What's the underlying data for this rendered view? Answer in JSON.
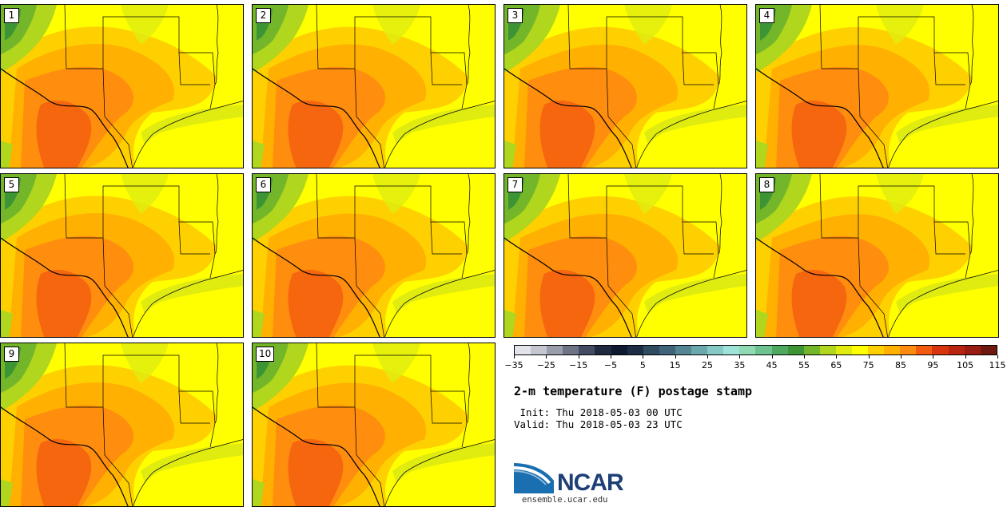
{
  "title": "2-m temperature (F) postage stamp",
  "init_label": " Init:",
  "init_value": "Thu 2018-05-03 00 UTC",
  "valid_label": "Valid:",
  "valid_value": "Thu 2018-05-03 23 UTC",
  "logo_text": "NCAR",
  "logo_url": "ensemble.ucar.edu",
  "panels": [
    "1",
    "2",
    "3",
    "4",
    "5",
    "6",
    "7",
    "8",
    "9",
    "10"
  ],
  "colorbar": {
    "colors": [
      "#e2e4ea",
      "#c4c7d0",
      "#9a9eab",
      "#6e7486",
      "#444c63",
      "#202a3f",
      "#0e1a30",
      "#1d2d45",
      "#304a60",
      "#3f6379",
      "#548593",
      "#6ba8ad",
      "#85c9c4",
      "#9fe3d8",
      "#8fd9b3",
      "#6dc38f",
      "#4fa85f",
      "#3d9434",
      "#74b62a",
      "#b0d61d",
      "#e0ec10",
      "#ffff00",
      "#ffd000",
      "#ffb000",
      "#ff8a10",
      "#f25a10",
      "#d8350e",
      "#b82410",
      "#981c12",
      "#6e1810"
    ],
    "tick_labels": [
      "−35",
      "−25",
      "−15",
      "−5",
      "5",
      "15",
      "25",
      "35",
      "45",
      "55",
      "65",
      "75",
      "85",
      "95",
      "105",
      "115"
    ]
  }
}
